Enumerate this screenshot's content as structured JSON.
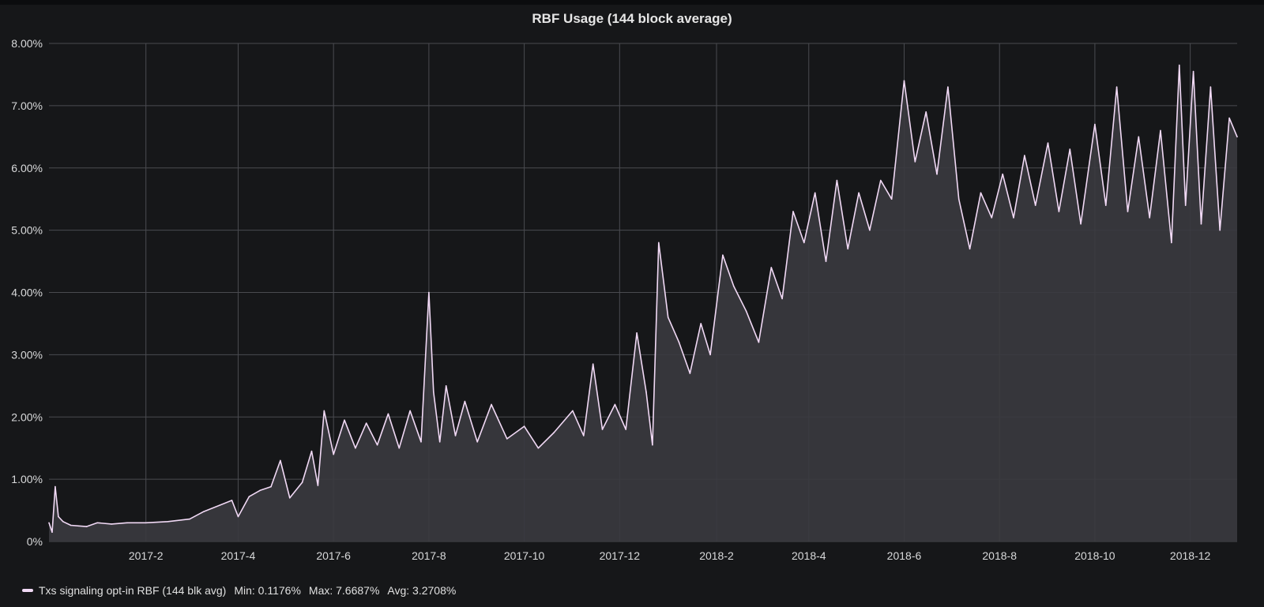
{
  "panel": {
    "title": "RBF Usage (144 block average)"
  },
  "colors": {
    "background": "#161719",
    "line": "#f1d9f5",
    "fill": "#3a3a3f",
    "grid": "#4a4b50",
    "text": "#d8d9da"
  },
  "legend": {
    "series_label": "Txs signaling opt-in RBF (144 blk avg)",
    "min": "Min: 0.1176%",
    "max": "Max: 7.6687%",
    "avg": "Avg: 3.2708%"
  },
  "chart_data": {
    "type": "area",
    "title": "RBF Usage (144 block average)",
    "xlabel": "",
    "ylabel": "",
    "ylim": [
      0,
      8
    ],
    "y_ticks": [
      "0%",
      "1.00%",
      "2.00%",
      "3.00%",
      "4.00%",
      "5.00%",
      "6.00%",
      "7.00%",
      "8.00%"
    ],
    "xlim": [
      "2016-12-01",
      "2018-12-31"
    ],
    "x_ticks": [
      {
        "label": "2017-2",
        "date": "2017-02-01"
      },
      {
        "label": "2017-4",
        "date": "2017-04-01"
      },
      {
        "label": "2017-6",
        "date": "2017-06-01"
      },
      {
        "label": "2017-8",
        "date": "2017-08-01"
      },
      {
        "label": "2017-10",
        "date": "2017-10-01"
      },
      {
        "label": "2017-12",
        "date": "2017-12-01"
      },
      {
        "label": "2018-2",
        "date": "2018-02-01"
      },
      {
        "label": "2018-4",
        "date": "2018-04-01"
      },
      {
        "label": "2018-6",
        "date": "2018-06-01"
      },
      {
        "label": "2018-8",
        "date": "2018-08-01"
      },
      {
        "label": "2018-10",
        "date": "2018-10-01"
      },
      {
        "label": "2018-12",
        "date": "2018-12-01"
      }
    ],
    "grid": true,
    "legend_position": "bottom-left",
    "series": [
      {
        "name": "Txs signaling opt-in RBF (144 blk avg)",
        "points": [
          [
            "2016-12-01",
            0.3
          ],
          [
            "2016-12-03",
            0.15
          ],
          [
            "2016-12-05",
            0.88
          ],
          [
            "2016-12-07",
            0.4
          ],
          [
            "2016-12-10",
            0.32
          ],
          [
            "2016-12-15",
            0.26
          ],
          [
            "2016-12-20",
            0.25
          ],
          [
            "2016-12-25",
            0.24
          ],
          [
            "2017-01-01",
            0.3
          ],
          [
            "2017-01-10",
            0.28
          ],
          [
            "2017-01-20",
            0.3
          ],
          [
            "2017-02-01",
            0.3
          ],
          [
            "2017-02-15",
            0.32
          ],
          [
            "2017-03-01",
            0.36
          ],
          [
            "2017-03-10",
            0.48
          ],
          [
            "2017-03-20",
            0.58
          ],
          [
            "2017-03-28",
            0.66
          ],
          [
            "2017-04-01",
            0.4
          ],
          [
            "2017-04-08",
            0.72
          ],
          [
            "2017-04-15",
            0.82
          ],
          [
            "2017-04-22",
            0.88
          ],
          [
            "2017-04-28",
            1.3
          ],
          [
            "2017-05-04",
            0.7
          ],
          [
            "2017-05-12",
            0.95
          ],
          [
            "2017-05-18",
            1.45
          ],
          [
            "2017-05-22",
            0.9
          ],
          [
            "2017-05-26",
            2.1
          ],
          [
            "2017-06-01",
            1.4
          ],
          [
            "2017-06-08",
            1.95
          ],
          [
            "2017-06-15",
            1.5
          ],
          [
            "2017-06-22",
            1.9
          ],
          [
            "2017-06-29",
            1.55
          ],
          [
            "2017-07-06",
            2.05
          ],
          [
            "2017-07-13",
            1.5
          ],
          [
            "2017-07-20",
            2.1
          ],
          [
            "2017-07-27",
            1.6
          ],
          [
            "2017-08-01",
            4.0
          ],
          [
            "2017-08-04",
            2.4
          ],
          [
            "2017-08-08",
            1.6
          ],
          [
            "2017-08-12",
            2.5
          ],
          [
            "2017-08-18",
            1.7
          ],
          [
            "2017-08-24",
            2.25
          ],
          [
            "2017-09-01",
            1.6
          ],
          [
            "2017-09-10",
            2.2
          ],
          [
            "2017-09-20",
            1.65
          ],
          [
            "2017-10-01",
            1.85
          ],
          [
            "2017-10-10",
            1.5
          ],
          [
            "2017-10-20",
            1.75
          ],
          [
            "2017-11-01",
            2.1
          ],
          [
            "2017-11-08",
            1.7
          ],
          [
            "2017-11-14",
            2.85
          ],
          [
            "2017-11-20",
            1.8
          ],
          [
            "2017-11-28",
            2.2
          ],
          [
            "2017-12-05",
            1.8
          ],
          [
            "2017-12-12",
            3.35
          ],
          [
            "2017-12-18",
            2.4
          ],
          [
            "2017-12-22",
            1.55
          ],
          [
            "2017-12-26",
            4.8
          ],
          [
            "2018-01-01",
            3.6
          ],
          [
            "2018-01-08",
            3.2
          ],
          [
            "2018-01-15",
            2.7
          ],
          [
            "2018-01-22",
            3.5
          ],
          [
            "2018-01-28",
            3.0
          ],
          [
            "2018-02-05",
            4.6
          ],
          [
            "2018-02-12",
            4.1
          ],
          [
            "2018-02-20",
            3.7
          ],
          [
            "2018-02-28",
            3.2
          ],
          [
            "2018-03-08",
            4.4
          ],
          [
            "2018-03-15",
            3.9
          ],
          [
            "2018-03-22",
            5.3
          ],
          [
            "2018-03-29",
            4.8
          ],
          [
            "2018-04-05",
            5.6
          ],
          [
            "2018-04-12",
            4.5
          ],
          [
            "2018-04-19",
            5.8
          ],
          [
            "2018-04-26",
            4.7
          ],
          [
            "2018-05-03",
            5.6
          ],
          [
            "2018-05-10",
            5.0
          ],
          [
            "2018-05-17",
            5.8
          ],
          [
            "2018-05-24",
            5.5
          ],
          [
            "2018-06-01",
            7.4
          ],
          [
            "2018-06-08",
            6.1
          ],
          [
            "2018-06-15",
            6.9
          ],
          [
            "2018-06-22",
            5.9
          ],
          [
            "2018-06-29",
            7.3
          ],
          [
            "2018-07-06",
            5.5
          ],
          [
            "2018-07-13",
            4.7
          ],
          [
            "2018-07-20",
            5.6
          ],
          [
            "2018-07-27",
            5.2
          ],
          [
            "2018-08-03",
            5.9
          ],
          [
            "2018-08-10",
            5.2
          ],
          [
            "2018-08-17",
            6.2
          ],
          [
            "2018-08-24",
            5.4
          ],
          [
            "2018-09-01",
            6.4
          ],
          [
            "2018-09-08",
            5.3
          ],
          [
            "2018-09-15",
            6.3
          ],
          [
            "2018-09-22",
            5.1
          ],
          [
            "2018-10-01",
            6.7
          ],
          [
            "2018-10-08",
            5.4
          ],
          [
            "2018-10-15",
            7.3
          ],
          [
            "2018-10-22",
            5.3
          ],
          [
            "2018-10-29",
            6.5
          ],
          [
            "2018-11-05",
            5.2
          ],
          [
            "2018-11-12",
            6.6
          ],
          [
            "2018-11-19",
            4.8
          ],
          [
            "2018-11-24",
            7.65
          ],
          [
            "2018-11-28",
            5.4
          ],
          [
            "2018-12-03",
            7.55
          ],
          [
            "2018-12-08",
            5.1
          ],
          [
            "2018-12-14",
            7.3
          ],
          [
            "2018-12-20",
            5.0
          ],
          [
            "2018-12-26",
            6.8
          ],
          [
            "2018-12-31",
            6.5
          ]
        ]
      }
    ]
  }
}
